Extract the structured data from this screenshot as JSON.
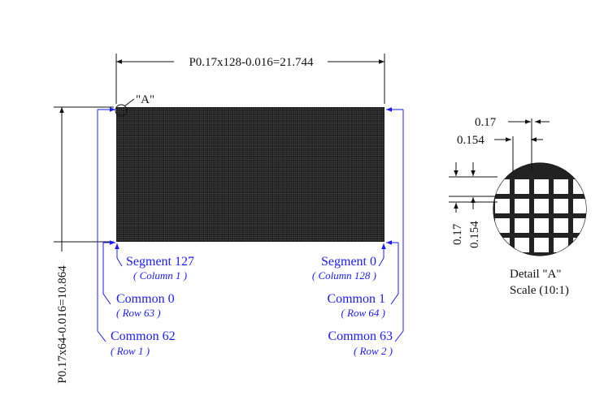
{
  "dimensions": {
    "top": "P0.17x128-0.016=21.744",
    "left": "P0.17x64-0.016=10.864",
    "detail_pitch": "0.17",
    "detail_dot": "0.154",
    "detail_pitch_v": "0.17",
    "detail_dot_v": "0.154"
  },
  "detail_marker": "\"A\"",
  "labels": {
    "segment_127": "Segment 127",
    "column_1": "( Column 1 )",
    "segment_0": "Segment 0",
    "column_128": "( Column 128 )",
    "common_0": "Common 0",
    "row_63": "( Row 63 )",
    "common_1": "Common 1",
    "row_64": "( Row 64 )",
    "common_62": "Common 62",
    "row_1": "( Row 1 )",
    "common_63": "Common 63",
    "row_2": "( Row 2 )"
  },
  "detail": {
    "title": "Detail \"A\"",
    "scale": "Scale (10:1)"
  },
  "matrix": {
    "columns": 128,
    "rows": 64
  },
  "colors": {
    "blue": "#1a1aff",
    "ink": "#111111",
    "matrix": "#1c1c1c"
  }
}
